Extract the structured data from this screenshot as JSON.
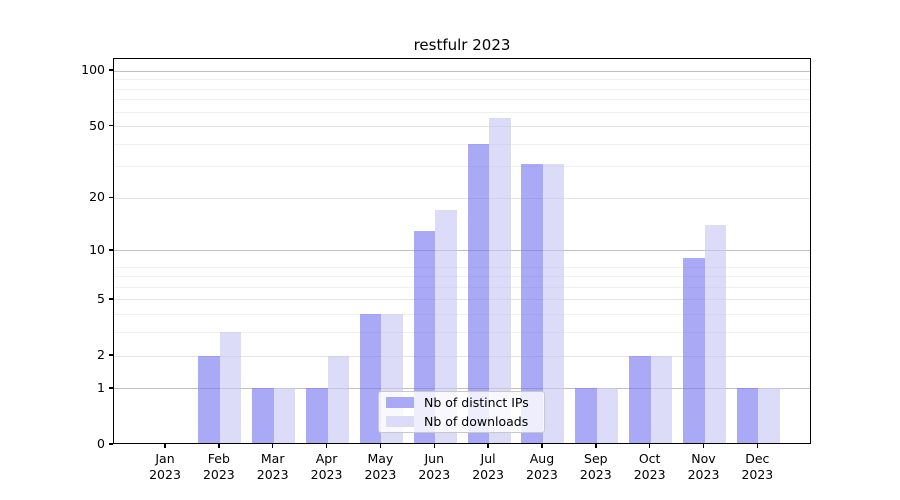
{
  "chart_data": {
    "type": "bar",
    "title": "restfulr 2023",
    "categories": [
      "Jan 2023",
      "Feb 2023",
      "Mar 2023",
      "Apr 2023",
      "May 2023",
      "Jun 2023",
      "Jul 2023",
      "Aug 2023",
      "Sep 2023",
      "Oct 2023",
      "Nov 2023",
      "Dec 2023"
    ],
    "series": [
      {
        "name": "Nb of distinct IPs",
        "color": "#a9a9f5",
        "fill": "rgba(116,116,239,0.62)",
        "values": [
          0,
          2,
          1,
          1,
          4,
          13,
          40,
          31,
          1,
          2,
          9,
          1
        ]
      },
      {
        "name": "Nb of downloads",
        "color": "#dcdcf8",
        "fill": "rgba(199,199,244,0.62)",
        "values": [
          0,
          3,
          1,
          2,
          4,
          17,
          55,
          31,
          1,
          2,
          14,
          1
        ]
      }
    ],
    "y_ticks": [
      0,
      1,
      2,
      5,
      10,
      20,
      50,
      100
    ],
    "y_scale": "log(1+x)",
    "ylim": [
      0,
      117
    ],
    "xlabel": "",
    "ylabel": "",
    "grid": true,
    "legend_position": "lower center"
  },
  "colors": {
    "grid_major": "#c0c0c0",
    "grid_labeled": "#e4e4e4",
    "grid_minor": "#f0f0f0",
    "axis": "#000000"
  }
}
